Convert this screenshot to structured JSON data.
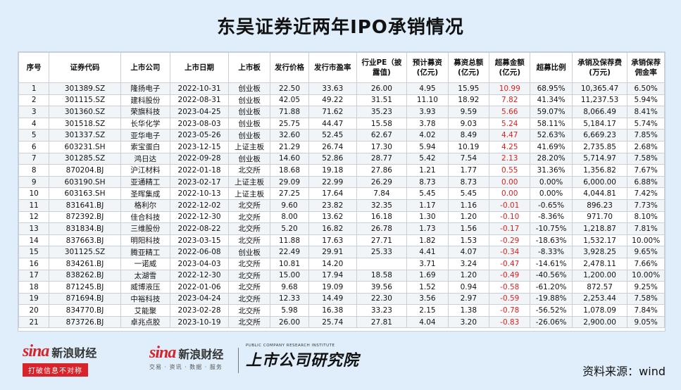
{
  "title": "东吴证券近两年IPO承销情况",
  "table": {
    "headers": [
      "序号",
      "证券代码",
      "上市公司",
      "上市日期",
      "上市板",
      "发行价格",
      "发行市盈率",
      "行业PE（披\n露值)",
      "预计募资\n(亿元)",
      "募资总额\n(亿元)",
      "超募金额\n(亿元)",
      "超募比例",
      "承销及保荐费\n(万元)",
      "承销保荐\n佣金率"
    ],
    "rows": [
      [
        "1",
        "301389.SZ",
        "隆扬电子",
        "2022-10-31",
        "创业板",
        "22.50",
        "33.63",
        "26.00",
        "4.95",
        "15.95",
        "10.99",
        "68.95%",
        "10,365.47",
        "6.50%"
      ],
      [
        "2",
        "301115.SZ",
        "建科股份",
        "2022-08-31",
        "创业板",
        "42.05",
        "49.22",
        "31.51",
        "11.10",
        "18.92",
        "7.82",
        "41.34%",
        "11,237.53",
        "5.94%"
      ],
      [
        "3",
        "301360.SZ",
        "荣旗科技",
        "2023-04-25",
        "创业板",
        "71.88",
        "71.62",
        "35.23",
        "3.93",
        "9.59",
        "5.66",
        "59.07%",
        "8,066.49",
        "8.41%"
      ],
      [
        "4",
        "301518.SZ",
        "长华化学",
        "2023-08-03",
        "创业板",
        "25.75",
        "44.47",
        "15.58",
        "3.78",
        "9.03",
        "5.24",
        "58.11%",
        "5,184.17",
        "5.74%"
      ],
      [
        "5",
        "301337.SZ",
        "亚华电子",
        "2023-05-26",
        "创业板",
        "32.60",
        "52.45",
        "62.67",
        "4.02",
        "8.49",
        "4.47",
        "52.63%",
        "6,669.23",
        "7.85%"
      ],
      [
        "6",
        "603231.SH",
        "索宝蛋白",
        "2023-12-15",
        "上证主板",
        "21.29",
        "26.74",
        "17.30",
        "5.94",
        "10.19",
        "4.25",
        "41.69%",
        "2,735.85",
        "2.68%"
      ],
      [
        "7",
        "301285.SZ",
        "鸿日达",
        "2022-09-28",
        "创业板",
        "14.60",
        "52.86",
        "28.77",
        "5.42",
        "7.54",
        "2.13",
        "28.20%",
        "5,714.97",
        "7.58%"
      ],
      [
        "8",
        "870204.BJ",
        "沪江材料",
        "2022-01-18",
        "北交所",
        "18.68",
        "19.18",
        "27.86",
        "1.21",
        "1.77",
        "0.55",
        "31.36%",
        "1,356.82",
        "7.67%"
      ],
      [
        "9",
        "603190.SH",
        "亚通精工",
        "2023-02-17",
        "上证主板",
        "29.09",
        "22.99",
        "26.29",
        "8.73",
        "8.73",
        "0.00",
        "0.00%",
        "6,000.00",
        "6.88%"
      ],
      [
        "10",
        "603163.SH",
        "圣晖集成",
        "2022-10-13",
        "上证主板",
        "27.25",
        "17.64",
        "7.84",
        "5.45",
        "5.45",
        "0.00",
        "0.00%",
        "4,044.81",
        "7.42%"
      ],
      [
        "11",
        "831641.BJ",
        "格利尔",
        "2022-12-02",
        "北交所",
        "9.60",
        "23.82",
        "32.35",
        "1.17",
        "1.16",
        "-0.01",
        "-0.65%",
        "896.23",
        "7.73%"
      ],
      [
        "12",
        "872392.BJ",
        "佳合科技",
        "2022-12-30",
        "北交所",
        "8.00",
        "13.62",
        "16.18",
        "1.30",
        "1.20",
        "-0.10",
        "-8.36%",
        "971.70",
        "8.10%"
      ],
      [
        "13",
        "831834.BJ",
        "三维股份",
        "2022-08-22",
        "北交所",
        "5.20",
        "16.82",
        "26.78",
        "1.73",
        "1.56",
        "-0.17",
        "-10.75%",
        "1,218.87",
        "7.81%"
      ],
      [
        "14",
        "837663.BJ",
        "明阳科技",
        "2023-03-15",
        "北交所",
        "11.88",
        "17.63",
        "27.71",
        "1.82",
        "1.53",
        "-0.29",
        "-18.63%",
        "1,532.17",
        "10.00%"
      ],
      [
        "15",
        "301125.SZ",
        "腾亚精工",
        "2022-06-08",
        "创业板",
        "22.49",
        "29.91",
        "25.33",
        "4.41",
        "4.07",
        "-0.34",
        "-8.33%",
        "3,928.25",
        "9.65%"
      ],
      [
        "16",
        "834261.BJ",
        "一诺威",
        "2023-04-03",
        "北交所",
        "10.81",
        "14.20",
        "",
        "3.71",
        "3.24",
        "-0.47",
        "-14.61%",
        "2,478.11",
        "7.66%"
      ],
      [
        "17",
        "838262.BJ",
        "太湖雪",
        "2022-12-30",
        "北交所",
        "15.00",
        "17.94",
        "18.58",
        "1.69",
        "1.20",
        "-0.49",
        "-40.56%",
        "1,200.00",
        "10.00%"
      ],
      [
        "18",
        "871245.BJ",
        "威博液压",
        "2022-01-06",
        "北交所",
        "9.68",
        "19.09",
        "39.56",
        "1.52",
        "0.94",
        "-0.58",
        "-61.20%",
        "872.57",
        "9.25%"
      ],
      [
        "19",
        "871694.BJ",
        "中裕科技",
        "2023-04-24",
        "北交所",
        "12.33",
        "14.49",
        "22.30",
        "3.56",
        "2.97",
        "-0.59",
        "-19.88%",
        "2,253.44",
        "7.58%"
      ],
      [
        "20",
        "834770.BJ",
        "艾能聚",
        "2023-02-28",
        "北交所",
        "5.98",
        "16.38",
        "33.23",
        "2.15",
        "1.38",
        "-0.78",
        "-56.52%",
        "1,078.09",
        "7.84%"
      ],
      [
        "21",
        "873726.BJ",
        "卓兆点胶",
        "2023-10-19",
        "北交所",
        "26.00",
        "25.74",
        "27.81",
        "4.04",
        "3.20",
        "-0.83",
        "-26.06%",
        "2,900.00",
        "9.05%"
      ]
    ]
  },
  "footer": {
    "sina_logo_word": "sina",
    "sina_logo_cn": "新浪财经",
    "sina_slogan": "打破信息不对称",
    "sina2_sub": "交易 · 资讯 · 数据 · 服务",
    "prc_en": "PUBLIC COMPANY RESEARCH INSTITUTE",
    "prc_cn": "上市公司研究院",
    "source": "资料来源：wind"
  },
  "colors": {
    "accent_red": "#e0201d",
    "background": "#dfeefa"
  }
}
